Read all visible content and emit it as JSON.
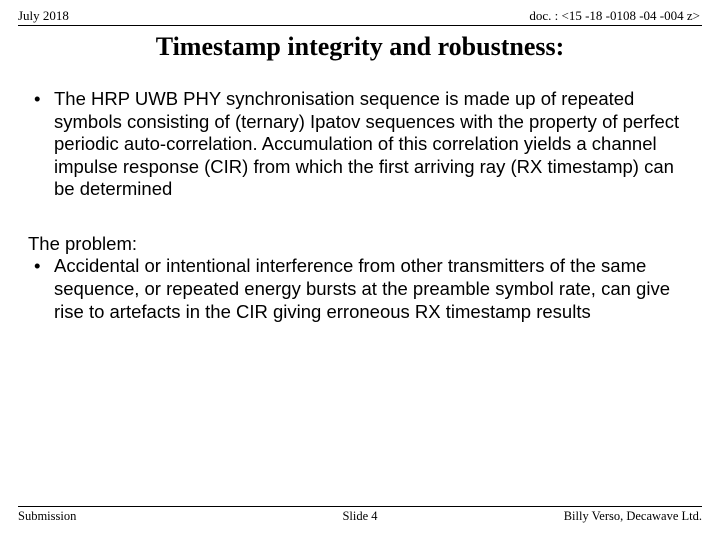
{
  "header": {
    "date": "July 2018",
    "doc": "doc. : <15 -18 -0108 -04 -004 z>"
  },
  "title": "Timestamp integrity and robustness:",
  "bullet1": "The HRP UWB PHY synchronisation sequence is made up of repeated symbols consisting of (ternary) Ipatov sequences with the property of perfect periodic auto-correlation.  Accumulation of this correlation yields a channel impulse response (CIR) from which the first arriving ray (RX timestamp) can be determined",
  "problem_label": "The problem:",
  "bullet2": "Accidental or intentional interference from other transmitters of the same sequence, or repeated energy bursts at the preamble symbol rate, can give rise to artefacts in the CIR giving erroneous RX timestamp results",
  "footer": {
    "left": "Submission",
    "center": "Slide 4",
    "right": "Billy Verso,  Decawave Ltd."
  }
}
